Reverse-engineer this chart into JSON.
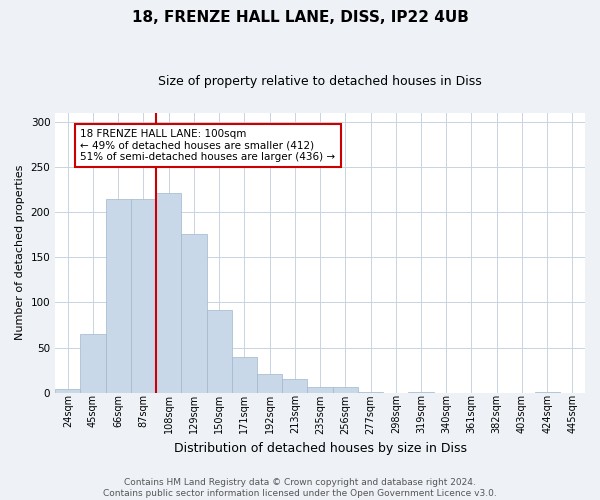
{
  "title1": "18, FRENZE HALL LANE, DISS, IP22 4UB",
  "title2": "Size of property relative to detached houses in Diss",
  "xlabel": "Distribution of detached houses by size in Diss",
  "ylabel": "Number of detached properties",
  "bin_labels": [
    "24sqm",
    "45sqm",
    "66sqm",
    "87sqm",
    "108sqm",
    "129sqm",
    "150sqm",
    "171sqm",
    "192sqm",
    "213sqm",
    "235sqm",
    "256sqm",
    "277sqm",
    "298sqm",
    "319sqm",
    "340sqm",
    "361sqm",
    "382sqm",
    "403sqm",
    "424sqm",
    "445sqm"
  ],
  "bar_heights": [
    4,
    65,
    215,
    215,
    221,
    176,
    92,
    40,
    21,
    15,
    6,
    6,
    1,
    0,
    1,
    0,
    0,
    0,
    0,
    1,
    0
  ],
  "bar_color": "#c8d8e8",
  "bar_edge_color": "#a0b8cc",
  "vline_color": "#cc0000",
  "annotation_text": "18 FRENZE HALL LANE: 100sqm\n← 49% of detached houses are smaller (412)\n51% of semi-detached houses are larger (436) →",
  "annotation_box_color": "#ffffff",
  "annotation_box_edge": "#cc0000",
  "ylim": [
    0,
    310
  ],
  "yticks": [
    0,
    50,
    100,
    150,
    200,
    250,
    300
  ],
  "footer": "Contains HM Land Registry data © Crown copyright and database right 2024.\nContains public sector information licensed under the Open Government Licence v3.0.",
  "bg_color": "#eef2f7",
  "plot_bg_color": "#ffffff",
  "title_fontsize": 11,
  "subtitle_fontsize": 9,
  "xlabel_fontsize": 9,
  "ylabel_fontsize": 8,
  "tick_fontsize": 7,
  "footer_fontsize": 6.5
}
